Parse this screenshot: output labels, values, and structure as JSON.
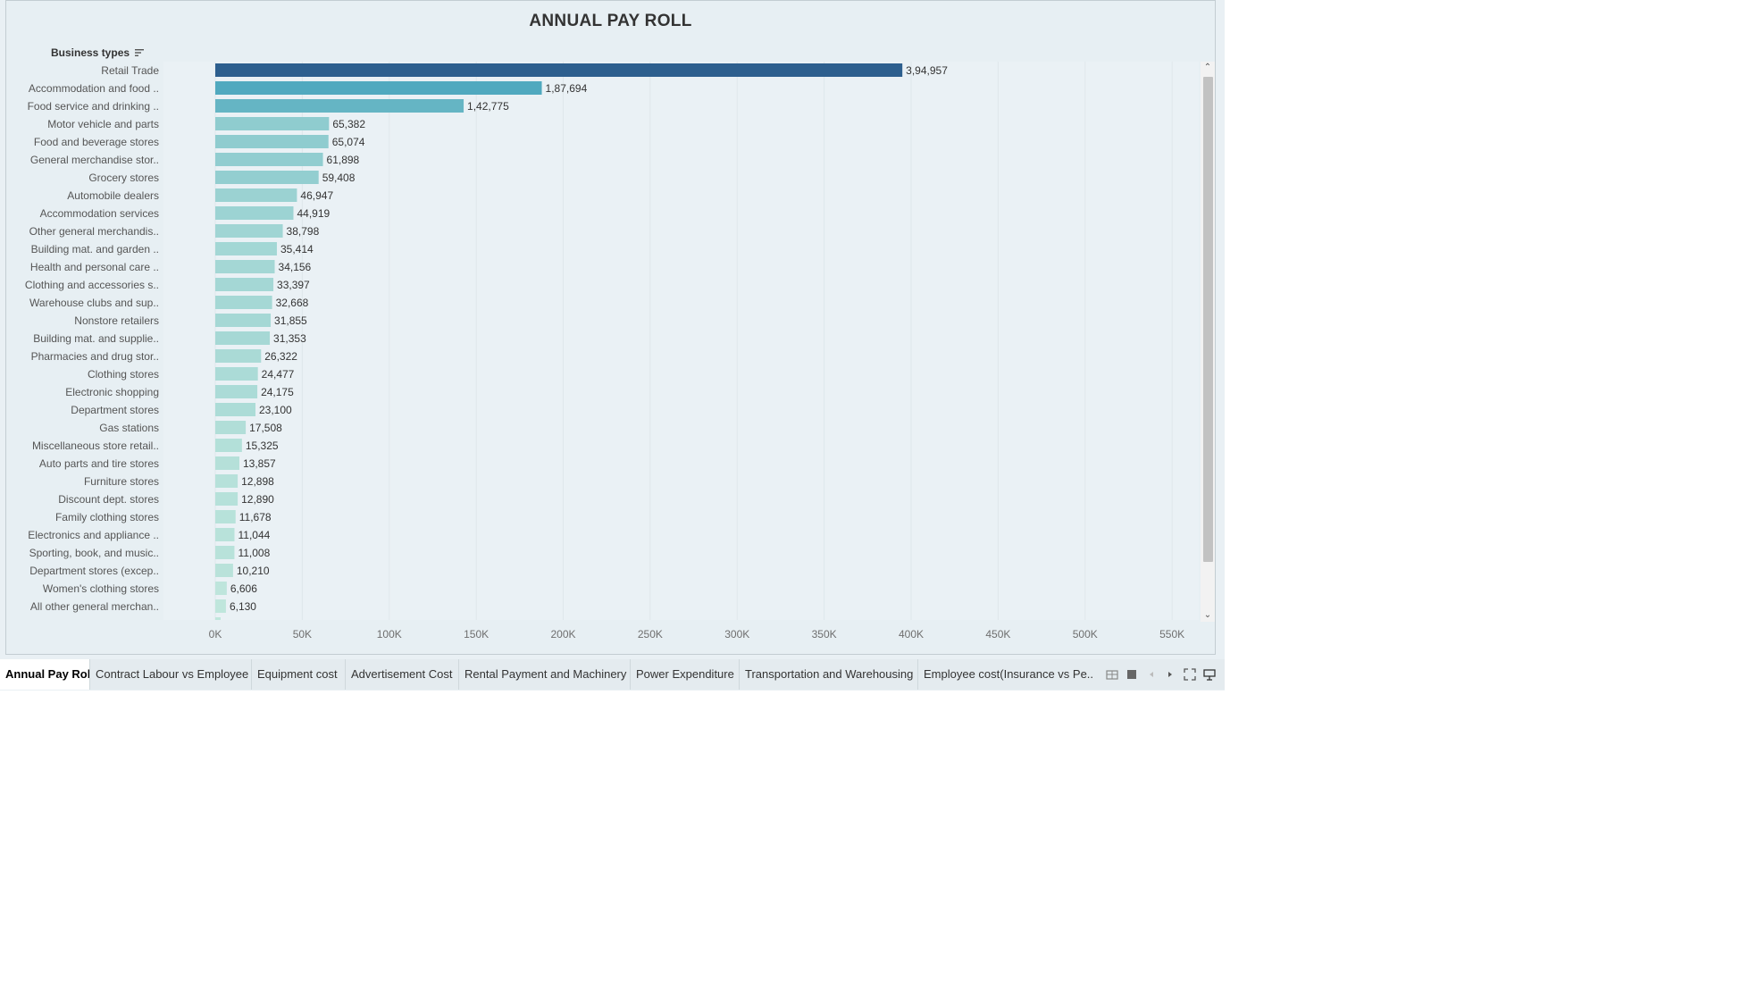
{
  "chart_data": {
    "type": "bar",
    "orientation": "horizontal",
    "title": "ANNUAL PAY ROLL",
    "ylabel": "Business types",
    "categories": [
      "Retail Trade",
      "Accommodation and food ..",
      "Food service and drinking ..",
      "Motor vehicle and parts",
      "Food and beverage stores",
      "General merchandise stor..",
      "Grocery stores",
      "Automobile dealers",
      "Accommodation services",
      "Other general merchandis..",
      "Building mat. and garden ..",
      "Health and personal care ..",
      "Clothing and accessories s..",
      "Warehouse clubs and sup..",
      "Nonstore retailers",
      "Building mat. and supplie..",
      "Pharmacies and drug stor..",
      "Clothing stores",
      "Electronic shopping",
      "Department stores",
      "Gas stations",
      "Miscellaneous store retail..",
      "Auto parts and tire stores",
      "Furniture stores",
      "Discount dept. stores",
      "Family clothing stores",
      "Electronics and appliance ..",
      "Sporting, book, and  music..",
      "Department stores (excep..",
      "Women's clothing stores",
      "All other general merchan.."
    ],
    "values": [
      394957,
      187694,
      142775,
      65382,
      65074,
      61898,
      59408,
      46947,
      44919,
      38798,
      35414,
      34156,
      33397,
      32668,
      31855,
      31353,
      26322,
      24477,
      24175,
      23100,
      17508,
      15325,
      13857,
      12898,
      12890,
      11678,
      11044,
      11008,
      10210,
      6606,
      6130
    ],
    "value_labels": [
      "3,94,957",
      "1,87,694",
      "1,42,775",
      "65,382",
      "65,074",
      "61,898",
      "59,408",
      "46,947",
      "44,919",
      "38,798",
      "35,414",
      "34,156",
      "33,397",
      "32,668",
      "31,855",
      "31,353",
      "26,322",
      "24,477",
      "24,175",
      "23,100",
      "17,508",
      "15,325",
      "13,857",
      "12,898",
      "12,890",
      "11,678",
      "11,044",
      "11,008",
      "10,210",
      "6,606",
      "6,130"
    ],
    "xlim": [
      0,
      560000
    ],
    "xticks": [
      0,
      50000,
      100000,
      150000,
      200000,
      250000,
      300000,
      350000,
      400000,
      450000,
      500000,
      550000
    ],
    "xtick_labels": [
      "0K",
      "50K",
      "100K",
      "150K",
      "200K",
      "250K",
      "300K",
      "350K",
      "400K",
      "450K",
      "500K",
      "550K"
    ],
    "grid": true,
    "color_scale": {
      "low": "#bfe6dc",
      "mid": "#4aa6bd",
      "high": "#2d5f8e"
    }
  },
  "tabs": [
    {
      "label": "Annual Pay Roll"
    },
    {
      "label": "Contract Labour vs Employee"
    },
    {
      "label": "Equipment cost"
    },
    {
      "label": "Advertisement Cost"
    },
    {
      "label": "Rental Payment and Machinery"
    },
    {
      "label": "Power Expenditure"
    },
    {
      "label": "Transportation and Warehousing"
    },
    {
      "label": "Employee cost(Insurance vs Pe..."
    }
  ],
  "icons": {
    "sort": "sort-descending-icon",
    "scroll_up": "chevron-up-icon",
    "scroll_down": "chevron-down-icon",
    "controls": [
      "sheet-grid-icon",
      "sheet-square-icon",
      "prev-sheet-icon",
      "next-sheet-icon",
      "fullscreen-icon",
      "presentation-icon"
    ]
  }
}
